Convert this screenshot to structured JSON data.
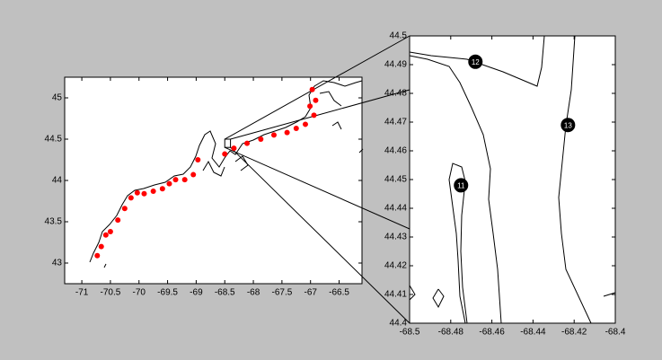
{
  "chart_data": [
    {
      "type": "map",
      "xlim": [
        -71.3,
        -66.1
      ],
      "ylim": [
        42.75,
        45.25
      ],
      "xticks": [
        -71,
        -70.5,
        -70,
        -69.5,
        -69,
        -68.5,
        -68,
        -67.5,
        -67,
        -66.5
      ],
      "yticks": [
        43,
        43.5,
        44,
        44.5,
        45
      ],
      "color": "#ff0000",
      "x": [
        -70.73,
        -70.66,
        -70.58,
        -70.5,
        -70.37,
        -70.25,
        -70.14,
        -70.03,
        -69.91,
        -69.75,
        -69.59,
        -69.47,
        -69.36,
        -69.2,
        -69.05,
        -68.97,
        -68.5,
        -68.34,
        -68.11,
        -67.87,
        -67.64,
        -67.41,
        -67.25,
        -67.09,
        -66.94,
        -67.01,
        -66.91,
        -66.97
      ],
      "values": [
        43.09,
        43.2,
        43.34,
        43.38,
        43.52,
        43.66,
        43.79,
        43.85,
        43.84,
        43.87,
        43.9,
        43.96,
        44.01,
        44.01,
        44.07,
        44.25,
        44.32,
        44.39,
        44.45,
        44.5,
        44.55,
        44.58,
        44.63,
        44.68,
        44.79,
        44.9,
        44.97,
        45.1
      ]
    },
    {
      "type": "stations",
      "xlim": [
        -68.5,
        -68.4
      ],
      "ylim": [
        44.4,
        44.5
      ],
      "xticks": [
        -68.5,
        -68.48,
        -68.46,
        -68.44,
        -68.42,
        -68.4
      ],
      "yticks": [
        44.4,
        44.41,
        44.42,
        44.43,
        44.44,
        44.45,
        44.46,
        44.47,
        44.48,
        44.49,
        44.5
      ],
      "color": "#000000",
      "x": [
        -68.468,
        -68.423,
        -68.475
      ],
      "values": [
        44.491,
        44.469,
        44.448
      ],
      "point_labels": [
        "12",
        "13",
        "11"
      ]
    }
  ]
}
